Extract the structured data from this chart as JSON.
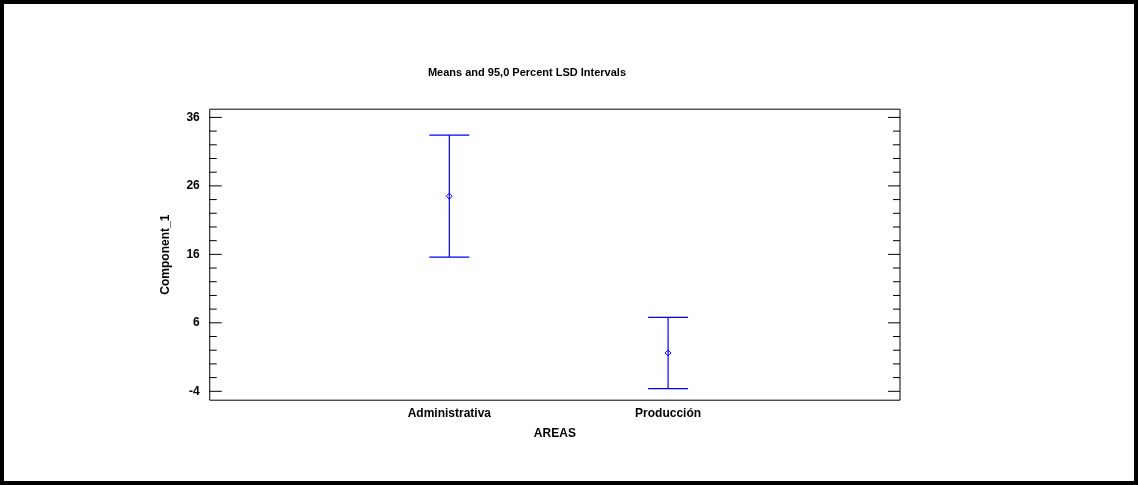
{
  "chart_data": {
    "type": "scatter",
    "title": "Means and 95,0 Percent LSD Intervals",
    "xlabel": "AREAS",
    "ylabel": "Component_1",
    "categories": [
      "Administrativa",
      "Producción"
    ],
    "series": [
      {
        "color": "#0000ff",
        "values": [
          24.5,
          1.6
        ],
        "errors": [
          8.9,
          5.2
        ]
      }
    ],
    "ylim": [
      -5.3,
      37.2
    ],
    "yticks": [
      -4,
      {
        "value": -2,
        "label": null
      },
      {
        "value": 0,
        "label": null
      },
      {
        "value": 2,
        "label": null
      },
      {
        "value": 4,
        "label": null
      },
      6,
      {
        "value": 8,
        "label": null
      },
      {
        "value": 10,
        "label": null
      },
      {
        "value": 12,
        "label": null
      },
      {
        "value": 14,
        "label": null
      },
      16,
      {
        "value": 18,
        "label": null
      },
      {
        "value": 20,
        "label": null
      },
      {
        "value": 22,
        "label": null
      },
      {
        "value": 24,
        "label": null
      },
      26,
      {
        "value": 28,
        "label": null
      },
      {
        "value": 30,
        "label": null
      },
      {
        "value": 32,
        "label": null
      },
      {
        "value": 34,
        "label": null
      },
      36
    ],
    "marker": "diamond",
    "grid": false,
    "legend": false
  }
}
